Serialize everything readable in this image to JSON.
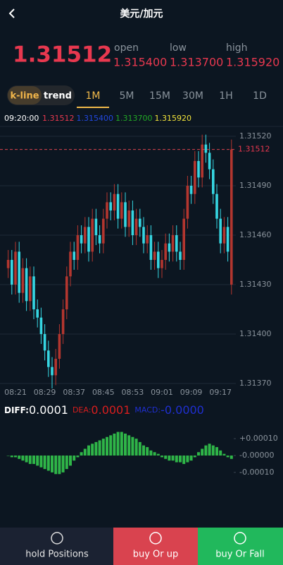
{
  "header": {
    "title": "美元/加元"
  },
  "quote": {
    "price": "1.31512",
    "open_label": "open",
    "low_label": "low",
    "high_label": "high",
    "open": "1.315400",
    "low": "1.313700",
    "high": "1.315920"
  },
  "tabs": [
    "k-line",
    "trend",
    "1M",
    "5M",
    "15M",
    "30M",
    "1H",
    "1D"
  ],
  "info": {
    "time": "09:20:00",
    "values": [
      {
        "text": "1.31512",
        "color": "#e8384f"
      },
      {
        "text": "1.315400",
        "color": "#2248e0"
      },
      {
        "text": "1.313700",
        "color": "#22a826"
      },
      {
        "text": "1.315920",
        "color": "#f2e33a"
      }
    ]
  },
  "chart_data": [
    {
      "type": "candlestick",
      "categories": [
        null,
        null,
        "08:21",
        null,
        null,
        null,
        null,
        null,
        null,
        null,
        "08:29",
        null,
        null,
        null,
        null,
        null,
        null,
        null,
        "08:37",
        null,
        null,
        null,
        null,
        null,
        null,
        null,
        "08:45",
        null,
        null,
        null,
        null,
        null,
        null,
        null,
        "08:53",
        null,
        null,
        null,
        null,
        null,
        null,
        null,
        "09:01",
        null,
        null,
        null,
        null,
        null,
        null,
        null,
        "09:09",
        null,
        null,
        null,
        null,
        null,
        null,
        null,
        "09:17",
        null,
        null,
        null
      ],
      "open": [
        1.3144,
        1.31445,
        1.3143,
        1.3145,
        1.31425,
        1.3144,
        1.3142,
        1.31435,
        1.31415,
        1.3141,
        1.314,
        1.3139,
        1.3138,
        1.31375,
        1.31385,
        1.314,
        1.31415,
        1.31435,
        1.3145,
        1.31445,
        1.3146,
        1.31455,
        1.31465,
        1.3145,
        1.3147,
        1.3146,
        1.31455,
        1.3147,
        1.3148,
        1.31475,
        1.31485,
        1.3147,
        1.3148,
        1.31465,
        1.31475,
        1.3146,
        1.3147,
        1.31465,
        1.31455,
        1.3146,
        1.31445,
        1.3145,
        1.3144,
        1.31445,
        1.31455,
        1.3145,
        1.3146,
        1.3145,
        1.31445,
        1.3147,
        1.3149,
        1.31485,
        1.31505,
        1.31495,
        1.31515,
        1.3151,
        1.315,
        1.31485,
        1.3147,
        1.31455,
        1.31465,
        1.3143
      ],
      "high": [
        1.31451,
        1.31451,
        1.31456,
        1.31456,
        1.31446,
        1.31446,
        1.31441,
        1.31441,
        1.31421,
        1.31416,
        1.31406,
        1.31396,
        1.31386,
        1.31391,
        1.31406,
        1.31421,
        1.31441,
        1.31456,
        1.31456,
        1.31466,
        1.31466,
        1.31471,
        1.31471,
        1.31476,
        1.31476,
        1.31466,
        1.31476,
        1.31486,
        1.31486,
        1.31491,
        1.31491,
        1.31486,
        1.31486,
        1.31481,
        1.31481,
        1.31476,
        1.31476,
        1.31471,
        1.31466,
        1.31466,
        1.31456,
        1.31456,
        1.31451,
        1.31461,
        1.31461,
        1.31466,
        1.31466,
        1.31456,
        1.31476,
        1.31496,
        1.31496,
        1.31511,
        1.31511,
        1.31521,
        1.31521,
        1.31516,
        1.31506,
        1.31491,
        1.31476,
        1.31471,
        1.31471,
        1.31518
      ],
      "low": [
        1.31434,
        1.31424,
        1.31424,
        1.31419,
        1.31419,
        1.31414,
        1.31414,
        1.31409,
        1.31404,
        1.31394,
        1.31384,
        1.31374,
        1.31367,
        1.31369,
        1.31379,
        1.31394,
        1.31409,
        1.31429,
        1.31439,
        1.31439,
        1.31449,
        1.31449,
        1.31444,
        1.31444,
        1.31454,
        1.31449,
        1.31449,
        1.31464,
        1.31469,
        1.31469,
        1.31464,
        1.31464,
        1.31459,
        1.31459,
        1.31454,
        1.31454,
        1.31459,
        1.31449,
        1.31449,
        1.31439,
        1.31439,
        1.31434,
        1.31434,
        1.31439,
        1.31444,
        1.31444,
        1.31444,
        1.31439,
        1.31439,
        1.31464,
        1.31479,
        1.31479,
        1.31489,
        1.31489,
        1.31504,
        1.31494,
        1.31479,
        1.31464,
        1.31449,
        1.31449,
        1.31444,
        1.31424
      ],
      "close": [
        1.31445,
        1.3143,
        1.3145,
        1.31425,
        1.3144,
        1.3142,
        1.31435,
        1.31415,
        1.3141,
        1.314,
        1.3139,
        1.3138,
        1.31375,
        1.31385,
        1.314,
        1.31415,
        1.31435,
        1.3145,
        1.31445,
        1.3146,
        1.31455,
        1.31465,
        1.3145,
        1.3147,
        1.3146,
        1.31455,
        1.3147,
        1.3148,
        1.31475,
        1.31485,
        1.3147,
        1.3148,
        1.31465,
        1.31475,
        1.3146,
        1.3147,
        1.31465,
        1.31455,
        1.3146,
        1.31445,
        1.3145,
        1.3144,
        1.31445,
        1.31455,
        1.3145,
        1.3146,
        1.3145,
        1.31445,
        1.3147,
        1.3149,
        1.31485,
        1.31505,
        1.31495,
        1.31515,
        1.3151,
        1.315,
        1.31485,
        1.3147,
        1.31455,
        1.31465,
        1.3145,
        1.31512
      ],
      "up_color": "#b3362f",
      "down_color": "#36d6e2",
      "ylim": [
        1.31365,
        1.31525
      ],
      "yticks": [
        {
          "value": 1.3152,
          "label": "1.31520"
        },
        {
          "value": 1.3149,
          "label": "1.31490"
        },
        {
          "value": 1.3146,
          "label": "1.31460"
        },
        {
          "value": 1.3143,
          "label": "1.31430"
        },
        {
          "value": 1.314,
          "label": "1.31400"
        },
        {
          "value": 1.3137,
          "label": "1.31370"
        }
      ],
      "grid": true,
      "last_price_line": true
    },
    {
      "type": "bar",
      "legend": [
        {
          "name": "DIFF:",
          "value": "0.0001",
          "color": "#ffffff"
        },
        {
          "name": "DEA:",
          "value": "0.0001",
          "color": "#d81e1e"
        },
        {
          "name": "MACD:",
          "value": "-0.0000",
          "color": "#1f2fd0"
        }
      ],
      "values": [
        0,
        -1e-05,
        -1e-05,
        -2e-05,
        -3e-05,
        -4e-05,
        -5e-05,
        -5e-05,
        -6e-05,
        -7e-05,
        -8e-05,
        -9e-05,
        -0.0001,
        -0.00011,
        -0.00011,
        -0.0001,
        -8e-05,
        -6e-05,
        -3e-05,
        -1e-05,
        2e-05,
        4e-05,
        6e-05,
        7e-05,
        8e-05,
        9e-05,
        0.0001,
        0.00011,
        0.00012,
        0.00013,
        0.00014,
        0.00014,
        0.00013,
        0.00012,
        0.00011,
        0.0001,
        8e-05,
        6e-05,
        5e-05,
        3e-05,
        2e-05,
        1e-05,
        -1e-05,
        -2e-05,
        -3e-05,
        -3e-05,
        -4e-05,
        -4e-05,
        -5e-05,
        -4e-05,
        -3e-05,
        -1e-05,
        2e-05,
        4e-05,
        6e-05,
        7e-05,
        6e-05,
        5e-05,
        3e-05,
        1e-05,
        -1e-05,
        -2e-05
      ],
      "color": "#2fb548",
      "ylim": [
        -0.00018,
        0.00018
      ],
      "yticks": [
        {
          "value": 0.0001,
          "label": "+0.00010"
        },
        {
          "value": 0,
          "label": "-0.00000"
        },
        {
          "value": -0.0001,
          "label": "-0.00010"
        }
      ]
    }
  ],
  "footer": {
    "buttons": [
      "hold Positions",
      "buy Or up",
      "buy Or Fall"
    ]
  }
}
